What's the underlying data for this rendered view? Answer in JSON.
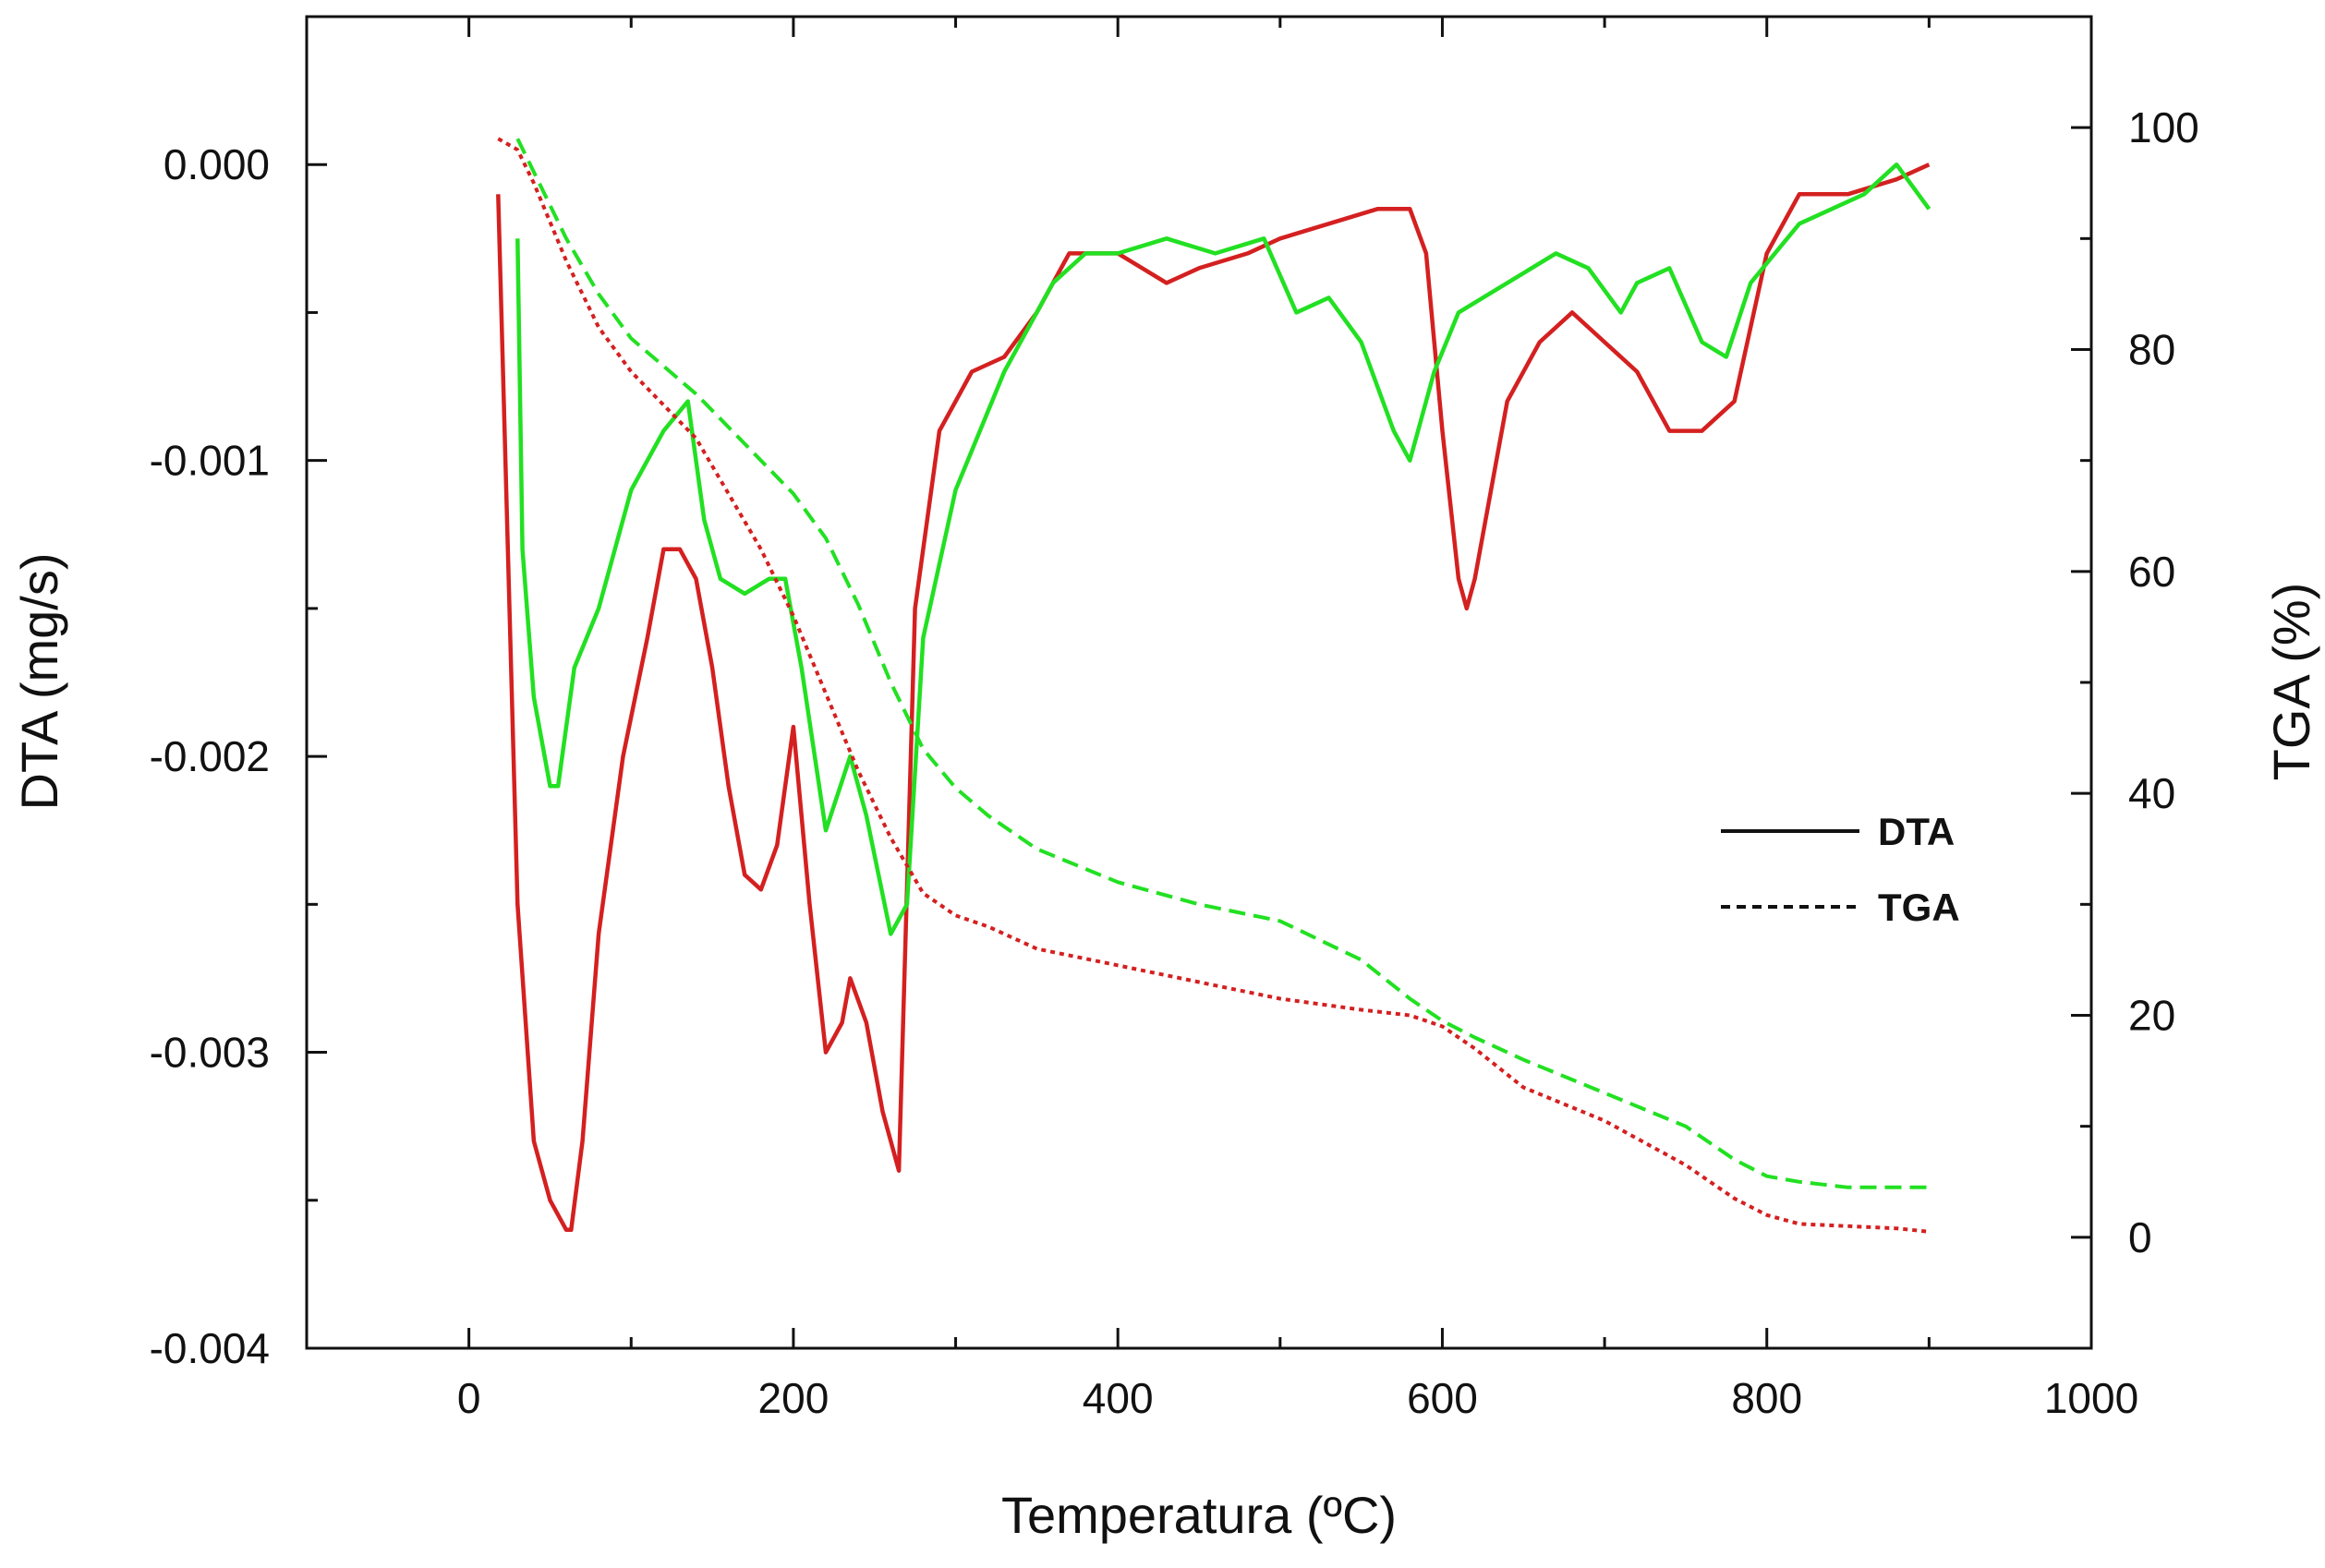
{
  "chart_data": {
    "type": "line",
    "xlabel": "Temperatura (ºC)",
    "ylabel_left": "DTA (mg/s)",
    "ylabel_right": "TGA (%)",
    "xlim": [
      -100,
      1000
    ],
    "ylim_left": [
      -0.004,
      0.0005
    ],
    "ylim_right": [
      -10,
      110
    ],
    "x_ticks": [
      0,
      200,
      400,
      600,
      800,
      1000
    ],
    "y_left_ticks": [
      0.0,
      -0.001,
      -0.002,
      -0.003,
      -0.004
    ],
    "y_left_tick_labels": [
      "0.000",
      "-0.001",
      "-0.002",
      "-0.003",
      "-0.004"
    ],
    "y_right_ticks": [
      0,
      20,
      40,
      60,
      80,
      100
    ],
    "grid": false,
    "legend": {
      "position": "center-right",
      "entries": [
        {
          "label": "DTA",
          "style": "solid"
        },
        {
          "label": "TGA",
          "style": "dashed"
        }
      ]
    },
    "series": [
      {
        "color": "#d42020",
        "axis": "left",
        "style": "solid",
        "x": [
          18,
          30,
          40,
          50,
          60,
          63,
          70,
          80,
          95,
          110,
          120,
          130,
          140,
          150,
          160,
          170,
          180,
          190,
          200,
          210,
          220,
          230,
          235,
          245,
          255,
          265,
          275,
          290,
          310,
          330,
          350,
          370,
          400,
          430,
          450,
          480,
          500,
          530,
          560,
          580,
          590,
          600,
          610,
          615,
          620,
          640,
          660,
          680,
          700,
          720,
          740,
          760,
          780,
          800,
          820,
          850,
          880,
          900
        ],
        "y": [
          -0.0001,
          -0.0025,
          -0.0033,
          -0.0035,
          -0.0036,
          -0.0036,
          -0.0033,
          -0.0026,
          -0.002,
          -0.0016,
          -0.0013,
          -0.0013,
          -0.0014,
          -0.0017,
          -0.0021,
          -0.0024,
          -0.00245,
          -0.0023,
          -0.0019,
          -0.0025,
          -0.003,
          -0.0029,
          -0.00275,
          -0.0029,
          -0.0032,
          -0.0034,
          -0.0015,
          -0.0009,
          -0.0007,
          -0.00065,
          -0.0005,
          -0.0003,
          -0.0003,
          -0.0004,
          -0.00035,
          -0.0003,
          -0.00025,
          -0.0002,
          -0.00015,
          -0.00015,
          -0.0003,
          -0.0009,
          -0.0014,
          -0.0015,
          -0.0014,
          -0.0008,
          -0.0006,
          -0.0005,
          -0.0006,
          -0.0007,
          -0.0009,
          -0.0009,
          -0.0008,
          -0.0003,
          -0.0001,
          -0.0001,
          -5e-05,
          0.0
        ]
      },
      {
        "color": "#22e022",
        "axis": "left",
        "style": "solid",
        "x": [
          30,
          33,
          40,
          50,
          55,
          65,
          80,
          100,
          120,
          135,
          145,
          155,
          170,
          185,
          195,
          205,
          220,
          235,
          245,
          260,
          270,
          280,
          300,
          330,
          360,
          380,
          400,
          430,
          460,
          490,
          510,
          530,
          550,
          570,
          580,
          595,
          610,
          640,
          670,
          690,
          710,
          720,
          740,
          760,
          775,
          790,
          820,
          840,
          860,
          880,
          900
        ],
        "y": [
          -0.00025,
          -0.0013,
          -0.0018,
          -0.0021,
          -0.0021,
          -0.0017,
          -0.0015,
          -0.0011,
          -0.0009,
          -0.0008,
          -0.0012,
          -0.0014,
          -0.00145,
          -0.0014,
          -0.0014,
          -0.0017,
          -0.00225,
          -0.002,
          -0.0022,
          -0.0026,
          -0.0025,
          -0.0016,
          -0.0011,
          -0.0007,
          -0.0004,
          -0.0003,
          -0.0003,
          -0.00025,
          -0.0003,
          -0.00025,
          -0.0005,
          -0.00045,
          -0.0006,
          -0.0009,
          -0.001,
          -0.0007,
          -0.0005,
          -0.0004,
          -0.0003,
          -0.00035,
          -0.0005,
          -0.0004,
          -0.00035,
          -0.0006,
          -0.00065,
          -0.0004,
          -0.0002,
          -0.00015,
          -0.0001,
          0.0,
          -0.00015
        ]
      },
      {
        "color": "#d42020",
        "axis": "right",
        "style": "dotted",
        "x": [
          18,
          30,
          40,
          60,
          80,
          100,
          120,
          140,
          160,
          180,
          200,
          220,
          240,
          260,
          280,
          300,
          320,
          350,
          400,
          450,
          500,
          550,
          580,
          600,
          620,
          650,
          700,
          750,
          780,
          800,
          820,
          850,
          880,
          900
        ],
        "y": [
          99,
          98,
          95,
          88,
          82,
          78,
          75,
          72,
          67,
          62,
          56,
          49,
          42,
          36,
          31,
          29,
          28,
          26,
          24.5,
          23,
          21.5,
          20.5,
          20,
          19,
          17,
          13.5,
          10.5,
          6.5,
          3.5,
          2,
          1.2,
          1,
          0.8,
          0.5
        ]
      },
      {
        "color": "#22e022",
        "axis": "right",
        "style": "dashed",
        "x": [
          30,
          40,
          60,
          80,
          100,
          120,
          140,
          160,
          180,
          200,
          220,
          240,
          260,
          280,
          300,
          320,
          350,
          400,
          450,
          500,
          550,
          580,
          600,
          620,
          650,
          700,
          750,
          780,
          800,
          820,
          850,
          880,
          900
        ],
        "y": [
          99,
          96,
          90,
          85,
          81,
          78.5,
          76,
          73,
          70,
          67,
          63,
          57,
          50,
          44,
          40.5,
          38,
          35,
          32,
          30,
          28.5,
          25,
          21.5,
          19.5,
          18,
          16,
          13,
          10,
          7,
          5.5,
          5,
          4.5,
          4.5,
          4.5
        ]
      }
    ]
  }
}
